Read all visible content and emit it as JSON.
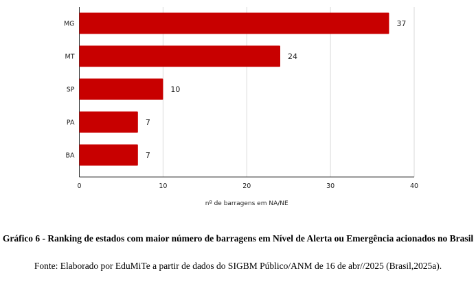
{
  "chart_data": {
    "type": "bar",
    "orientation": "horizontal",
    "categories": [
      "MG",
      "MT",
      "SP",
      "PA",
      "BA"
    ],
    "values": [
      37,
      24,
      10,
      7,
      7
    ],
    "data_labels": [
      "37",
      "24",
      "10",
      "7",
      "7"
    ],
    "xlabel": "nº de barragens em NA/NE",
    "ylabel": "",
    "xlim": [
      0,
      40
    ],
    "xticks": [
      0,
      10,
      20,
      30,
      40
    ],
    "xtick_labels": [
      "0",
      "10",
      "20",
      "30",
      "40"
    ],
    "grid": "vertical",
    "bar_color": "#c80000",
    "grid_color": "#d9d9d9"
  },
  "caption": {
    "title": "Gráfico 6 - Ranking de estados com maior número de barragens em Nível de Alerta ou Emergência acionados no Brasil",
    "source": "Fonte: Elaborado por EduMiTe a partir de dados do SIGBM Público/ANM de 16 de abr//2025 (Brasil,2025a)."
  }
}
